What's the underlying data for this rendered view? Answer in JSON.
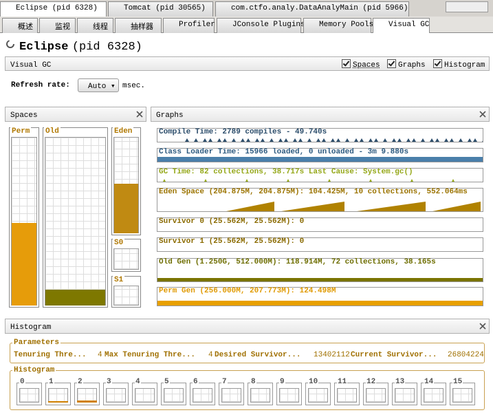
{
  "window_tabs": [
    "Eclipse (pid 6328)",
    "Tomcat (pid 30565)",
    "com.ctfo.analy.DataAnalyMain (pid 5966)"
  ],
  "view_tabs": [
    "概述",
    "监视",
    "线程",
    "抽样器",
    "Profiler",
    "JConsole Plugins",
    "Memory Pools",
    "Visual GC"
  ],
  "header": {
    "title": "Eclipse",
    "pid": "(pid 6328)"
  },
  "visual_gc": {
    "label": "Visual GC",
    "options": [
      "Spaces",
      "Graphs",
      "Histogram"
    ],
    "refresh_label": "Refresh rate:",
    "refresh_value": "Auto",
    "refresh_unit": "msec."
  },
  "spaces": {
    "title": "Spaces",
    "regions": [
      "Perm",
      "Old",
      "Eden",
      "S0",
      "S1"
    ]
  },
  "graphs": {
    "title": "Graphs",
    "rows": [
      "Compile Time: 2789 compiles - 49.740s",
      "Class Loader Time: 15966 loaded, 0 unloaded - 3m 9.880s",
      "GC Time: 82 collections, 38.717s  Last Cause: System.gc()",
      "Eden Space (204.875M, 204.875M): 104.425M, 10 collections, 552.064ms",
      "Survivor 0 (25.562M, 25.562M): 0",
      "Survivor 1 (25.562M, 25.562M): 0",
      "Old Gen (1.250G, 512.000M): 118.914M, 72 collections, 38.165s",
      "Perm Gen (256.000M, 207.773M): 124.498M"
    ]
  },
  "histogram": {
    "title": "Histogram",
    "parameters_title": "Parameters",
    "parameters": [
      [
        "Tenuring Thre...",
        "4"
      ],
      [
        "Max Tenuring Thre...",
        "4"
      ],
      [
        "Desired Survivor...",
        "13402112"
      ],
      [
        "Current Survivor...",
        "26804224"
      ]
    ],
    "histogram_title": "Histogram",
    "bins": [
      "0",
      "1",
      "2",
      "3",
      "4",
      "5",
      "6",
      "7",
      "8",
      "9",
      "10",
      "11",
      "12",
      "13",
      "14",
      "15"
    ]
  }
}
